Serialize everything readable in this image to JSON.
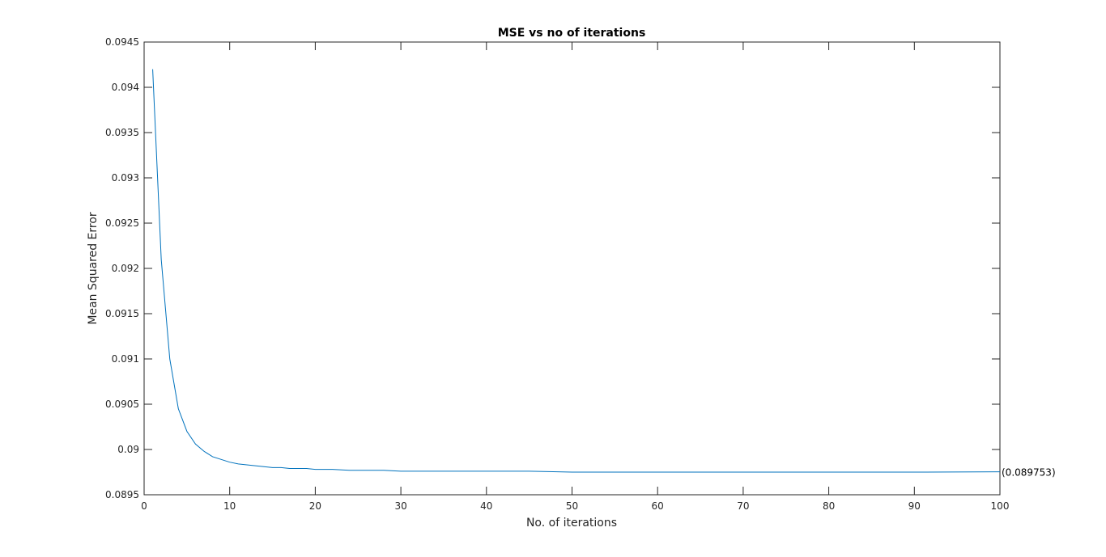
{
  "chart_data": {
    "type": "line",
    "title": "MSE vs no of iterations",
    "xlabel": "No. of iterations",
    "ylabel": "Mean Squared Error",
    "xlim": [
      0,
      100
    ],
    "ylim": [
      0.0895,
      0.0945
    ],
    "xticks": [
      "0",
      "10",
      "20",
      "30",
      "40",
      "50",
      "60",
      "70",
      "80",
      "90",
      "100"
    ],
    "yticks": [
      "0.0895",
      "0.09",
      "0.0905",
      "0.091",
      "0.0915",
      "0.092",
      "0.0925",
      "0.093",
      "0.0935",
      "0.094",
      "0.0945"
    ],
    "grid": false,
    "line_color": "#0072BD",
    "series": [
      {
        "x": [
          1,
          2,
          3,
          4,
          5,
          6,
          7,
          8,
          9,
          10,
          11,
          12,
          13,
          14,
          15,
          16,
          17,
          18,
          19,
          20,
          22,
          24,
          26,
          28,
          30,
          35,
          40,
          45,
          50,
          60,
          70,
          80,
          90,
          100
        ],
        "values": [
          0.0942,
          0.0921,
          0.091,
          0.09045,
          0.0902,
          0.09006,
          0.08998,
          0.08992,
          0.08989,
          0.08986,
          0.08984,
          0.08983,
          0.08982,
          0.08981,
          0.0898,
          0.0898,
          0.08979,
          0.08979,
          0.08979,
          0.08978,
          0.08978,
          0.08977,
          0.08977,
          0.08977,
          0.08976,
          0.08976,
          0.08976,
          0.08976,
          0.08975,
          0.08975,
          0.08975,
          0.08975,
          0.08975,
          0.089753
        ]
      }
    ],
    "annotations": [
      {
        "text": "(0.089753)",
        "x": 100,
        "y": 0.089753
      }
    ]
  }
}
